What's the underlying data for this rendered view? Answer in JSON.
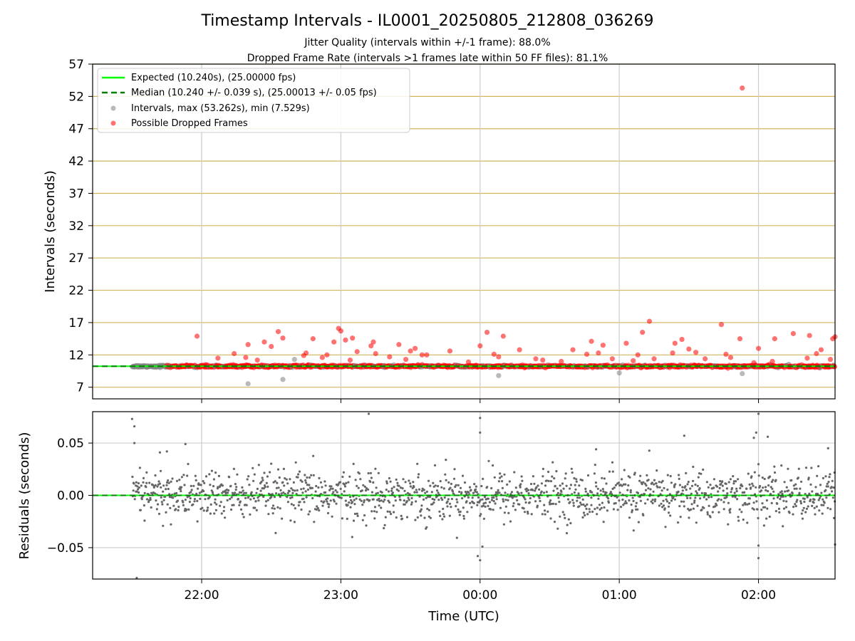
{
  "title": "Timestamp Intervals - IL0001_20250805_212808_036269",
  "subtitle_1": "Jitter Quality (intervals within +/-1 frame): 88.0%",
  "subtitle_2": "Dropped Frame Rate (intervals >1 frames late within 50 FF files): 81.1%",
  "colors": {
    "expected": "#00ff00",
    "median": "#008000",
    "intervals": "#808080",
    "dropped": "#ff0000",
    "hgrid_top": "#d2b55b",
    "vgrid": "#cccccc",
    "residual_points": "#666666"
  },
  "chart_data": [
    {
      "type": "scatter",
      "panel": "intervals",
      "ylabel": "Intervals (seconds)",
      "ylim": [
        5.2,
        57
      ],
      "yticks": [
        7,
        12,
        17,
        22,
        27,
        32,
        37,
        42,
        47,
        52,
        57
      ],
      "xlim": [
        "21:13",
        "02:33"
      ],
      "xticks": [
        "22:00",
        "23:00",
        "00:00",
        "01:00",
        "02:00"
      ],
      "grid": "horizontal gold lines, vertical light gray lines",
      "legend_position": "top-left",
      "legend": [
        "Expected (10.240s), (25.00000 fps)",
        "Median (10.240 +/- 0.039 s), (25.00013 +/- 0.05 fps)",
        "Intervals, max (53.262s), min (7.529s)",
        "Possible Dropped Frames"
      ],
      "expected_value": 10.24,
      "median_value": 10.24,
      "series_intervals_outliers": [
        {
          "x": "22:20",
          "y": 7.53
        },
        {
          "x": "22:35",
          "y": 8.2
        },
        {
          "x": "00:08",
          "y": 8.8
        },
        {
          "x": "01:00",
          "y": 9.2
        },
        {
          "x": "01:53",
          "y": 9.1
        },
        {
          "x": "22:40",
          "y": 11.3
        }
      ],
      "series_dropped_frames": [
        {
          "x": "21:58",
          "y": 14.9
        },
        {
          "x": "22:07",
          "y": 11.5
        },
        {
          "x": "22:14",
          "y": 12.2
        },
        {
          "x": "22:19",
          "y": 11.6
        },
        {
          "x": "22:20",
          "y": 13.6
        },
        {
          "x": "22:24",
          "y": 11.2
        },
        {
          "x": "22:27",
          "y": 14.0
        },
        {
          "x": "22:30",
          "y": 13.3
        },
        {
          "x": "22:33",
          "y": 15.6
        },
        {
          "x": "22:35",
          "y": 14.6
        },
        {
          "x": "22:44",
          "y": 11.9
        },
        {
          "x": "22:45",
          "y": 12.3
        },
        {
          "x": "22:48",
          "y": 14.5
        },
        {
          "x": "22:52",
          "y": 11.6
        },
        {
          "x": "22:54",
          "y": 12.0
        },
        {
          "x": "22:57",
          "y": 14.0
        },
        {
          "x": "22:59",
          "y": 16.1
        },
        {
          "x": "23:00",
          "y": 15.7
        },
        {
          "x": "23:02",
          "y": 14.3
        },
        {
          "x": "23:04",
          "y": 11.2
        },
        {
          "x": "23:05",
          "y": 14.6
        },
        {
          "x": "23:07",
          "y": 12.5
        },
        {
          "x": "23:13",
          "y": 13.4
        },
        {
          "x": "23:14",
          "y": 14.0
        },
        {
          "x": "23:15",
          "y": 12.2
        },
        {
          "x": "23:21",
          "y": 11.7
        },
        {
          "x": "23:25",
          "y": 13.6
        },
        {
          "x": "23:28",
          "y": 11.3
        },
        {
          "x": "23:30",
          "y": 12.6
        },
        {
          "x": "23:32",
          "y": 13.0
        },
        {
          "x": "23:35",
          "y": 12.0
        },
        {
          "x": "23:37",
          "y": 12.0
        },
        {
          "x": "23:47",
          "y": 12.6
        },
        {
          "x": "23:55",
          "y": 10.9
        },
        {
          "x": "24:00",
          "y": 13.4
        },
        {
          "x": "24:03",
          "y": 15.5
        },
        {
          "x": "24:06",
          "y": 12.1
        },
        {
          "x": "24:08",
          "y": 11.7
        },
        {
          "x": "24:10",
          "y": 14.9
        },
        {
          "x": "24:17",
          "y": 12.8
        },
        {
          "x": "24:24",
          "y": 11.4
        },
        {
          "x": "24:27",
          "y": 11.2
        },
        {
          "x": "24:35",
          "y": 11.0
        },
        {
          "x": "24:40",
          "y": 12.8
        },
        {
          "x": "24:46",
          "y": 12.1
        },
        {
          "x": "24:48",
          "y": 14.1
        },
        {
          "x": "24:51",
          "y": 12.3
        },
        {
          "x": "24:53",
          "y": 13.5
        },
        {
          "x": "24:57",
          "y": 11.4
        },
        {
          "x": "25:03",
          "y": 13.8
        },
        {
          "x": "25:06",
          "y": 11.1
        },
        {
          "x": "25:08",
          "y": 12.0
        },
        {
          "x": "25:10",
          "y": 15.5
        },
        {
          "x": "25:13",
          "y": 17.2
        },
        {
          "x": "25:15",
          "y": 11.4
        },
        {
          "x": "25:23",
          "y": 12.3
        },
        {
          "x": "25:24",
          "y": 13.8
        },
        {
          "x": "25:27",
          "y": 14.4
        },
        {
          "x": "25:30",
          "y": 12.9
        },
        {
          "x": "25:33",
          "y": 12.4
        },
        {
          "x": "25:37",
          "y": 11.4
        },
        {
          "x": "25:44",
          "y": 16.7
        },
        {
          "x": "25:46",
          "y": 12.1
        },
        {
          "x": "25:48",
          "y": 11.6
        },
        {
          "x": "25:52",
          "y": 14.5
        },
        {
          "x": "25:53",
          "y": 53.3
        },
        {
          "x": "25:58",
          "y": 10.8
        },
        {
          "x": "26:00",
          "y": 13.0
        },
        {
          "x": "26:06",
          "y": 11.0
        },
        {
          "x": "26:07",
          "y": 14.5
        },
        {
          "x": "26:15",
          "y": 15.3
        },
        {
          "x": "26:21",
          "y": 11.5
        },
        {
          "x": "26:22",
          "y": 15.0
        },
        {
          "x": "26:25",
          "y": 12.2
        },
        {
          "x": "26:27",
          "y": 12.8
        },
        {
          "x": "26:31",
          "y": 11.3
        },
        {
          "x": "26:32",
          "y": 14.5
        },
        {
          "x": "26:33",
          "y": 14.8
        }
      ],
      "dense_band": {
        "x_start": "21:30",
        "x_end": "02:33",
        "y_center": 10.24,
        "y_spread": 0.15
      }
    },
    {
      "type": "scatter",
      "panel": "residuals",
      "ylabel": "Residuals (seconds)",
      "xlabel": "Time (UTC)",
      "ylim": [
        -0.08,
        0.08
      ],
      "yticks": [
        -0.05,
        0.0,
        0.05
      ],
      "yticklabels": [
        "−0.05",
        "0.00",
        "0.05"
      ],
      "xlim": [
        "21:13",
        "02:33"
      ],
      "xticks": [
        "22:00",
        "23:00",
        "00:00",
        "01:00",
        "02:00"
      ],
      "reference_line": 0.0,
      "notable_points": [
        {
          "x": "21:30",
          "y": 0.073
        },
        {
          "x": "21:31",
          "y": 0.066
        },
        {
          "x": "21:31",
          "y": 0.05
        },
        {
          "x": "21:32",
          "y": -0.079
        },
        {
          "x": "21:42",
          "y": 0.041
        },
        {
          "x": "21:45",
          "y": 0.042
        },
        {
          "x": "21:53",
          "y": 0.049
        },
        {
          "x": "23:12",
          "y": 0.078
        },
        {
          "x": "23:59",
          "y": -0.058
        },
        {
          "x": "24:00",
          "y": 0.074
        },
        {
          "x": "24:00",
          "y": -0.062
        },
        {
          "x": "24:01",
          "y": -0.049
        },
        {
          "x": "24:00",
          "y": 0.06
        },
        {
          "x": "24:50",
          "y": 0.044
        },
        {
          "x": "25:28",
          "y": 0.057
        },
        {
          "x": "25:58",
          "y": 0.055
        },
        {
          "x": "25:59",
          "y": 0.06
        },
        {
          "x": "26:00",
          "y": 0.078
        },
        {
          "x": "26:00",
          "y": -0.06
        },
        {
          "x": "26:00",
          "y": -0.048
        },
        {
          "x": "26:04",
          "y": 0.056
        },
        {
          "x": "26:30",
          "y": 0.045
        },
        {
          "x": "26:33",
          "y": -0.047
        }
      ],
      "typical_spread": 0.012,
      "x_start": "21:30",
      "x_end": "02:33"
    }
  ]
}
